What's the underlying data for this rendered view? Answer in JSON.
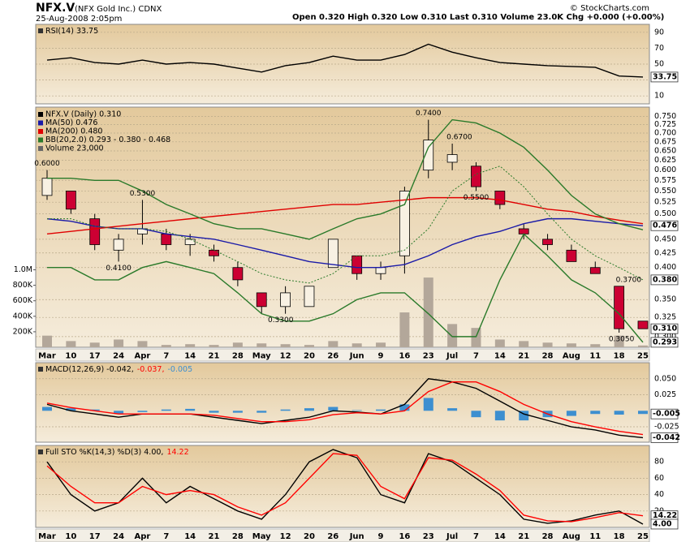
{
  "header": {
    "symbol": "NFX.V",
    "name": "(NFX Gold Inc.) CDNX",
    "date": "25-Aug-2008 2:05pm",
    "quote": "Open 0.320 High 0.320 Low 0.310 Last 0.310 Volume 23.0K Chg +0.000 (+0.00%)",
    "credit": "© StockCharts.com"
  },
  "chart_data": [
    {
      "type": "line",
      "ylim": [
        0,
        100
      ],
      "yticks": [
        90,
        70,
        50,
        30,
        10
      ],
      "grid": true,
      "series": [
        {
          "name": "RSI(14) 33.75",
          "color": "#000000",
          "values": [
            55,
            58,
            52,
            50,
            55,
            50,
            52,
            50,
            45,
            40,
            48,
            52,
            60,
            55,
            55,
            62,
            75,
            65,
            58,
            52,
            50,
            48,
            47,
            46,
            35,
            33.75
          ]
        }
      ],
      "value_boxes": [
        33.75
      ]
    },
    {
      "type": "candlestick",
      "name": "NFX.V (Daily) 0.310",
      "log": true,
      "grid": true,
      "categories": [
        "Mar",
        "10",
        "17",
        "24",
        "Apr",
        "7",
        "14",
        "21",
        "28",
        "May",
        "12",
        "20",
        "26",
        "Jun",
        "9",
        "16",
        "23",
        "Jul",
        "7",
        "14",
        "21",
        "28",
        "Aug",
        "11",
        "18",
        "25"
      ],
      "open": [
        0.54,
        0.55,
        0.49,
        0.43,
        0.46,
        0.46,
        0.44,
        0.43,
        0.4,
        0.36,
        0.34,
        0.34,
        0.4,
        0.42,
        0.39,
        0.42,
        0.6,
        0.62,
        0.61,
        0.55,
        0.47,
        0.45,
        0.43,
        0.4,
        0.37,
        0.32
      ],
      "high": [
        0.6,
        0.55,
        0.5,
        0.46,
        0.53,
        0.47,
        0.46,
        0.44,
        0.41,
        0.36,
        0.37,
        0.37,
        0.45,
        0.42,
        0.41,
        0.56,
        0.74,
        0.67,
        0.62,
        0.55,
        0.48,
        0.46,
        0.44,
        0.41,
        0.37,
        0.32
      ],
      "low": [
        0.53,
        0.5,
        0.43,
        0.41,
        0.44,
        0.43,
        0.42,
        0.41,
        0.37,
        0.33,
        0.33,
        0.34,
        0.4,
        0.38,
        0.38,
        0.39,
        0.58,
        0.6,
        0.55,
        0.51,
        0.45,
        0.43,
        0.41,
        0.39,
        0.305,
        0.31
      ],
      "close": [
        0.58,
        0.51,
        0.44,
        0.45,
        0.47,
        0.44,
        0.45,
        0.42,
        0.38,
        0.34,
        0.36,
        0.37,
        0.45,
        0.39,
        0.4,
        0.55,
        0.68,
        0.64,
        0.56,
        0.52,
        0.46,
        0.44,
        0.41,
        0.39,
        0.31,
        0.31
      ],
      "up_color": "#000000",
      "down_color": "#cc0033",
      "ylim": [
        0.287,
        0.78
      ],
      "yticks": [
        {
          "value": 0.75,
          "label": "0.750"
        },
        0.725,
        {
          "value": 0.7,
          "label": "0.700"
        },
        0.675,
        {
          "value": 0.65,
          "label": "0.650"
        },
        0.625,
        {
          "value": 0.6,
          "label": "0.600"
        },
        0.575,
        {
          "value": 0.55,
          "label": "0.550"
        },
        0.525,
        {
          "value": 0.5,
          "label": "0.500"
        },
        {
          "value": 0.45,
          "label": "0.450"
        },
        0.425,
        {
          "value": 0.4,
          "label": "0.400"
        },
        {
          "value": 0.35,
          "label": "0.350"
        },
        0.325,
        {
          "value": 0.3,
          "label": "0.300"
        }
      ],
      "y2lim": [
        0,
        3100000
      ],
      "y2ticks": [
        {
          "value": 1000000,
          "label": "1.0M"
        },
        {
          "value": 800000,
          "label": "800K"
        },
        {
          "value": 600000,
          "label": "600K"
        },
        {
          "value": 400000,
          "label": "400K"
        },
        {
          "value": 200000,
          "label": "200K"
        }
      ],
      "series": [
        {
          "name": "MA(50) 0.476",
          "color": "#1a1aa8",
          "values": [
            0.49,
            0.485,
            0.475,
            0.47,
            0.47,
            0.46,
            0.455,
            0.45,
            0.44,
            0.43,
            0.42,
            0.41,
            0.405,
            0.4,
            0.4,
            0.405,
            0.42,
            0.44,
            0.455,
            0.465,
            0.48,
            0.49,
            0.49,
            0.485,
            0.48,
            0.476
          ]
        },
        {
          "name": "MA(200) 0.480",
          "color": "#e00000",
          "values": [
            0.46,
            0.465,
            0.47,
            0.475,
            0.48,
            0.485,
            0.49,
            0.495,
            0.5,
            0.505,
            0.51,
            0.515,
            0.52,
            0.52,
            0.525,
            0.53,
            0.535,
            0.535,
            0.535,
            0.53,
            0.52,
            0.51,
            0.505,
            0.495,
            0.487,
            0.48
          ]
        },
        {
          "name": "BB(20,2.0) 0.293 - 0.380 - 0.468",
          "color": "#2a7a2a",
          "values": [
            0.58,
            0.58,
            0.575,
            0.575,
            0.55,
            0.52,
            0.5,
            0.48,
            0.47,
            0.47,
            0.46,
            0.45,
            0.47,
            0.49,
            0.5,
            0.52,
            0.66,
            0.74,
            0.73,
            0.7,
            0.66,
            0.6,
            0.54,
            0.5,
            0.48,
            0.468
          ]
        },
        {
          "color": "#2a7a2a",
          "values": [
            0.4,
            0.4,
            0.38,
            0.38,
            0.4,
            0.41,
            0.4,
            0.39,
            0.36,
            0.33,
            0.32,
            0.32,
            0.33,
            0.35,
            0.36,
            0.36,
            0.33,
            0.3,
            0.3,
            0.38,
            0.46,
            0.42,
            0.38,
            0.36,
            0.33,
            0.293
          ]
        },
        {
          "color": "#2a7a2a",
          "style": "dotted",
          "values": [
            0.49,
            0.49,
            0.475,
            0.47,
            0.47,
            0.465,
            0.45,
            0.43,
            0.41,
            0.39,
            0.38,
            0.375,
            0.39,
            0.42,
            0.42,
            0.43,
            0.47,
            0.55,
            0.59,
            0.61,
            0.56,
            0.5,
            0.45,
            0.42,
            0.4,
            0.38
          ]
        },
        {
          "name": "Volume 23,000",
          "type": "bar",
          "axis": "y2",
          "color": "#b3a79a",
          "values": [
            150000,
            80000,
            60000,
            100000,
            80000,
            30000,
            40000,
            30000,
            60000,
            50000,
            40000,
            30000,
            80000,
            50000,
            60000,
            450000,
            900000,
            300000,
            250000,
            100000,
            80000,
            60000,
            50000,
            40000,
            150000,
            23000
          ]
        }
      ],
      "annotations": [
        {
          "x": 0,
          "value": 0.6,
          "label": "0.6000"
        },
        {
          "x": 4,
          "value": 0.53,
          "label": "0.5300"
        },
        {
          "x": 3,
          "value": 0.41,
          "label": "0.4100"
        },
        {
          "x": 9.8,
          "value": 0.33,
          "label": "0.3300"
        },
        {
          "x": 16,
          "value": 0.74,
          "label": "0.7400"
        },
        {
          "x": 17.3,
          "value": 0.67,
          "label": "0.6700"
        },
        {
          "x": 18,
          "value": 0.55,
          "label": "0.5500"
        },
        {
          "x": 24.4,
          "value": 0.37,
          "label": "0.3700"
        },
        {
          "x": 24.1,
          "value": 0.305,
          "label": "0.3050"
        }
      ],
      "value_boxes": [
        0.476,
        {
          "value": 0.38,
          "label": "0.380"
        },
        {
          "value": 0.31,
          "label": "0.310"
        },
        0.293
      ]
    },
    {
      "type": "line",
      "ylim": [
        -0.049,
        0.075
      ],
      "yticks": [
        {
          "value": 0.05,
          "label": "0.050"
        },
        0.025,
        -0.025
      ],
      "grid": true,
      "series": [
        {
          "name": "MACD(12,26,9) -0.042,",
          "color": "#000000",
          "values": [
            0.01,
            0.0,
            -0.005,
            -0.01,
            -0.005,
            -0.005,
            -0.005,
            -0.01,
            -0.015,
            -0.02,
            -0.015,
            -0.01,
            0.0,
            -0.002,
            -0.005,
            0.01,
            0.05,
            0.045,
            0.035,
            0.015,
            -0.005,
            -0.015,
            -0.025,
            -0.03,
            -0.038,
            -0.042
          ]
        },
        {
          "name": "-0.037,",
          "color": "#ff0000",
          "values": [
            0.012,
            0.005,
            0.0,
            -0.005,
            -0.005,
            -0.005,
            -0.005,
            -0.007,
            -0.012,
            -0.017,
            -0.017,
            -0.014,
            -0.006,
            -0.003,
            -0.005,
            0.0,
            0.03,
            0.045,
            0.045,
            0.03,
            0.01,
            -0.005,
            -0.017,
            -0.025,
            -0.032,
            -0.037
          ]
        },
        {
          "name": "-0.005",
          "type": "bar",
          "color": "#3d8fd0",
          "values": [
            0.006,
            0.004,
            0.002,
            -0.004,
            -0.002,
            0.002,
            0.003,
            -0.003,
            -0.003,
            -0.003,
            0.002,
            0.004,
            0.006,
            0.001,
            0.002,
            0.01,
            0.02,
            0.004,
            -0.01,
            -0.015,
            -0.015,
            -0.01,
            -0.008,
            -0.005,
            -0.006,
            -0.005
          ]
        }
      ],
      "value_boxes": [
        -0.005,
        -0.042
      ]
    },
    {
      "type": "line",
      "ylim": [
        0,
        100
      ],
      "yticks": [
        80,
        60,
        40,
        20
      ],
      "grid": true,
      "series": [
        {
          "name": "Full STO %K(14,3) %D(3) 4.00,",
          "color": "#000000",
          "values": [
            80,
            40,
            20,
            30,
            60,
            30,
            50,
            35,
            20,
            10,
            40,
            80,
            95,
            85,
            40,
            30,
            90,
            80,
            60,
            40,
            10,
            5,
            8,
            15,
            20,
            4
          ]
        },
        {
          "name": "14.22",
          "color": "#ff0000",
          "values": [
            75,
            50,
            30,
            30,
            50,
            40,
            45,
            40,
            25,
            15,
            30,
            60,
            90,
            88,
            50,
            35,
            85,
            82,
            65,
            45,
            15,
            8,
            7,
            12,
            18,
            14.22
          ]
        }
      ],
      "value_boxes": [
        14.22,
        {
          "value": 4,
          "label": "4.00"
        }
      ]
    }
  ]
}
